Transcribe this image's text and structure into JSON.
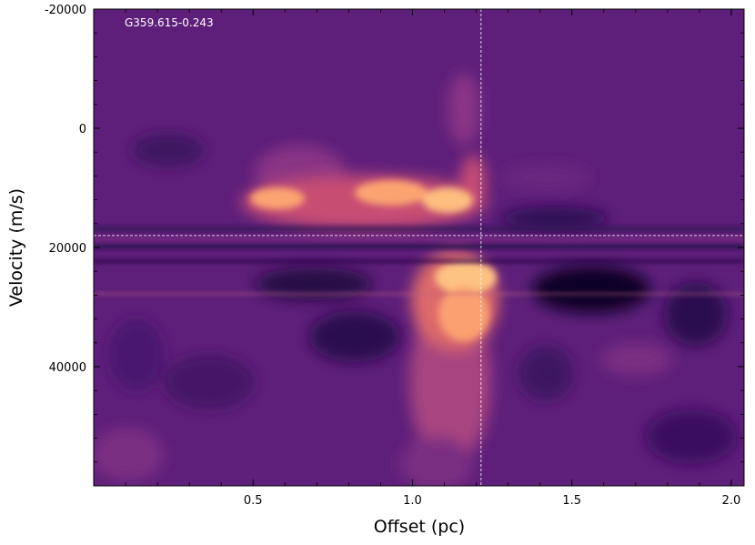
{
  "chart_data": {
    "type": "heatmap",
    "title": "",
    "xlabel": "Offset (pc)",
    "ylabel": "Velocity (m/s)",
    "annotation": "G359.615-0.243",
    "xlim": [
      0.0,
      2.04
    ],
    "ylim": [
      -20000,
      60000
    ],
    "y_inverted": true,
    "x_ticks": [
      0.5,
      1.0,
      1.5,
      2.0
    ],
    "x_tick_labels": [
      "0.5",
      "1.0",
      "1.5",
      "2.0"
    ],
    "y_ticks": [
      -20000,
      0,
      20000,
      40000
    ],
    "y_tick_labels": [
      "-20000",
      "0",
      "20000",
      "40000"
    ],
    "crosshair": {
      "x": 1.215,
      "y": 18000
    },
    "colormap": "magma",
    "colors": {
      "background": "#5e1f7a",
      "crosshair": "#ffffff",
      "annotation": "#ffffff"
    },
    "grid": false
  }
}
